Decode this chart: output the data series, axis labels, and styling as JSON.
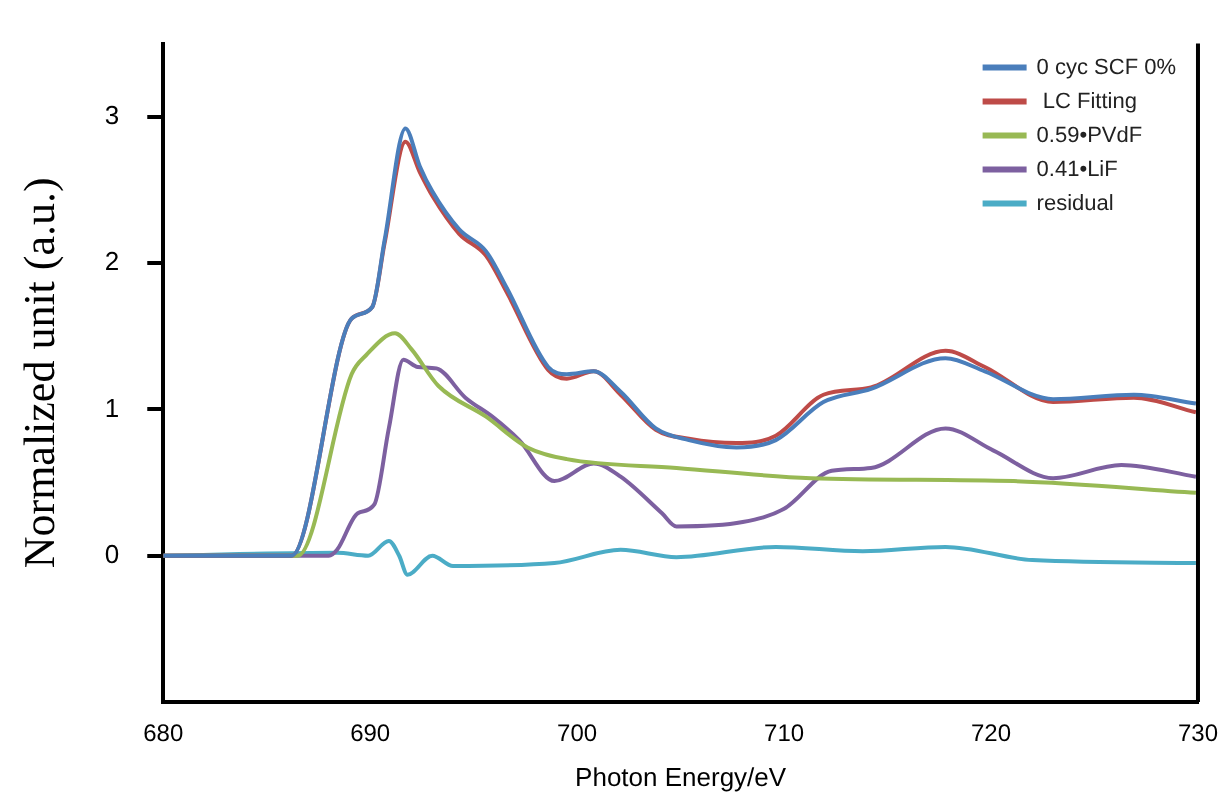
{
  "chart_data": {
    "type": "line",
    "xlabel": "Photon Energy/eV",
    "ylabel": "Normalized unit (a.u.)",
    "xlim": [
      680,
      730
    ],
    "xticks": [
      680,
      690,
      700,
      710,
      720,
      730
    ],
    "ylim": [
      -1,
      3.5
    ],
    "yticks": [
      0,
      1,
      2,
      3
    ],
    "grid": false,
    "legend": "top right",
    "marker": "none",
    "line_style": "solid",
    "series": [
      {
        "name": "0 cyc SCF 0%",
        "color": "#4a7ebb",
        "x": [
          680,
          686.2,
          689.1,
          690.1,
          690.7,
          691.7,
          692.4,
          693.0,
          694.3,
          695.6,
          696.6,
          698.6,
          699.5,
          700.8,
          702.1,
          703.8,
          705.4,
          707.7,
          709.6,
          711.9,
          714.2,
          717.8,
          719.7,
          723.0,
          726.9,
          729.9
        ],
        "values": [
          0,
          0,
          1.62,
          1.7,
          2.16,
          2.92,
          2.66,
          2.49,
          2.23,
          2.08,
          1.83,
          1.29,
          1.24,
          1.26,
          1.12,
          0.87,
          0.79,
          0.74,
          0.79,
          1.05,
          1.14,
          1.35,
          1.26,
          1.07,
          1.1,
          1.04
        ]
      },
      {
        "name": " LC Fitting",
        "color": "#be4b48",
        "x": [
          680,
          686.2,
          689.1,
          690.1,
          690.7,
          691.7,
          692.4,
          693.0,
          694.3,
          695.6,
          696.6,
          698.6,
          699.5,
          700.8,
          702.1,
          703.8,
          705.4,
          707.7,
          709.6,
          711.9,
          714.2,
          717.8,
          719.7,
          723.0,
          726.9,
          729.9
        ],
        "values": [
          0,
          0,
          1.62,
          1.7,
          2.14,
          2.83,
          2.62,
          2.46,
          2.2,
          2.05,
          1.8,
          1.27,
          1.21,
          1.26,
          1.1,
          0.86,
          0.8,
          0.77,
          0.82,
          1.1,
          1.15,
          1.4,
          1.29,
          1.05,
          1.08,
          0.98
        ]
      },
      {
        "name": "0.59•PVdF",
        "color": "#98b954",
        "x": [
          680,
          686.5,
          689.1,
          689.8,
          691.2,
          692.0,
          693.3,
          695.6,
          697.6,
          699.5,
          704.8,
          711.3,
          721.1,
          729.9
        ],
        "values": [
          0,
          0,
          1.24,
          1.37,
          1.52,
          1.41,
          1.16,
          0.95,
          0.74,
          0.66,
          0.6,
          0.53,
          0.51,
          0.43
        ]
      },
      {
        "name": "0.41•LiF",
        "color": "#7d60a0",
        "x": [
          680,
          688.0,
          688.4,
          689.4,
          690.2,
          690.9,
          691.6,
          692.3,
          693.2,
          694.6,
          695.9,
          697.2,
          698.9,
          700.8,
          702.1,
          704.1,
          704.8,
          708.0,
          710.0,
          712.3,
          714.2,
          717.8,
          720.1,
          723.0,
          726.3,
          729.9
        ],
        "values": [
          0,
          0,
          0.04,
          0.29,
          0.35,
          0.87,
          1.34,
          1.29,
          1.28,
          1.08,
          0.95,
          0.79,
          0.51,
          0.63,
          0.54,
          0.29,
          0.2,
          0.23,
          0.32,
          0.58,
          0.6,
          0.87,
          0.72,
          0.53,
          0.62,
          0.54
        ]
      },
      {
        "name": "residual",
        "color": "#4bacc6",
        "x": [
          680,
          688.4,
          689.9,
          690.9,
          691.4,
          691.8,
          693.0,
          694.0,
          698.9,
          702.1,
          704.8,
          709.6,
          713.8,
          717.8,
          722.0,
          729.9
        ],
        "values": [
          0,
          0.02,
          0,
          0.1,
          0,
          -0.13,
          0,
          -0.07,
          -0.05,
          0.04,
          -0.01,
          0.06,
          0.03,
          0.06,
          -0.03,
          -0.05
        ]
      }
    ]
  }
}
